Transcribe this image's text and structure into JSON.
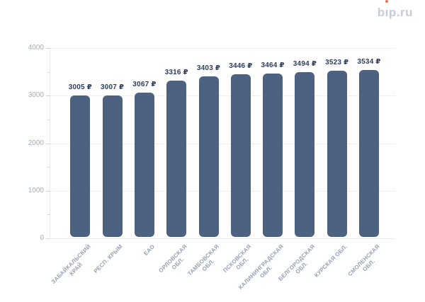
{
  "logo": {
    "text": "bip.ru",
    "parts": {
      "pre": "b",
      "i": "ı",
      "post": "p.ru"
    },
    "color": "#c7cbda",
    "dot_color": "#ee7158"
  },
  "chart_data": {
    "type": "bar",
    "title": "",
    "categories": [
      "ЗАБАЙКАЛЬСКИЙ КРАЙ",
      "РЕСП. КРЫМ",
      "ЕАО",
      "ОРЛОВСКАЯ ОБЛ.",
      "ТАМБОВСКАЯ ОБЛ.",
      "ПСКОВСКАЯ ОБЛ.",
      "КАЛИНИНГРАДСКАЯ ОБЛ.",
      "БЕЛГОРОДСКАЯ ОБЛ.",
      "КУРСКАЯ ОБЛ.",
      "СМОЛЕНСКАЯ ОБЛ."
    ],
    "category_lines": [
      [
        "ЗАБАЙКАЛЬСКИЙ",
        "КРАЙ"
      ],
      [
        "РЕСП. КРЫМ"
      ],
      [
        "ЕАО"
      ],
      [
        "ОРЛОВСКАЯ",
        "ОБЛ."
      ],
      [
        "ТАМБОВСКАЯ",
        "ОБЛ."
      ],
      [
        "ПСКОВСКАЯ",
        "ОБЛ."
      ],
      [
        "КАЛИНИНГРАДСКАЯ",
        "ОБЛ."
      ],
      [
        "БЕЛГОРОДСКАЯ",
        "ОБЛ."
      ],
      [
        "КУРСКАЯ ОБЛ."
      ],
      [
        "СМОЛЕНСКАЯ",
        "ОБЛ."
      ]
    ],
    "values": [
      3005,
      3007,
      3067,
      3316,
      3403,
      3446,
      3464,
      3494,
      3523,
      3534
    ],
    "value_labels": [
      "3005 ₽",
      "3007 ₽",
      "3067 ₽",
      "3316 ₽",
      "3403 ₽",
      "3446 ₽",
      "3464 ₽",
      "3494 ₽",
      "3523 ₽",
      "3534 ₽"
    ],
    "unit": "₽",
    "xlabel": "",
    "ylabel": "",
    "ylim": [
      0,
      4000
    ],
    "y_major_step": 1000,
    "y_minor_step": 500,
    "y_tick_labels": [
      "0",
      "1000",
      "2000",
      "3000",
      "4000"
    ],
    "grid": "horizontal dotted lines at major ticks",
    "legend": "none",
    "bar_color": "#4d6180",
    "value_label_color": "#2d3e5c",
    "y_tick_label_color": "#a4aab8",
    "category_label_color": "#97a0b2"
  }
}
